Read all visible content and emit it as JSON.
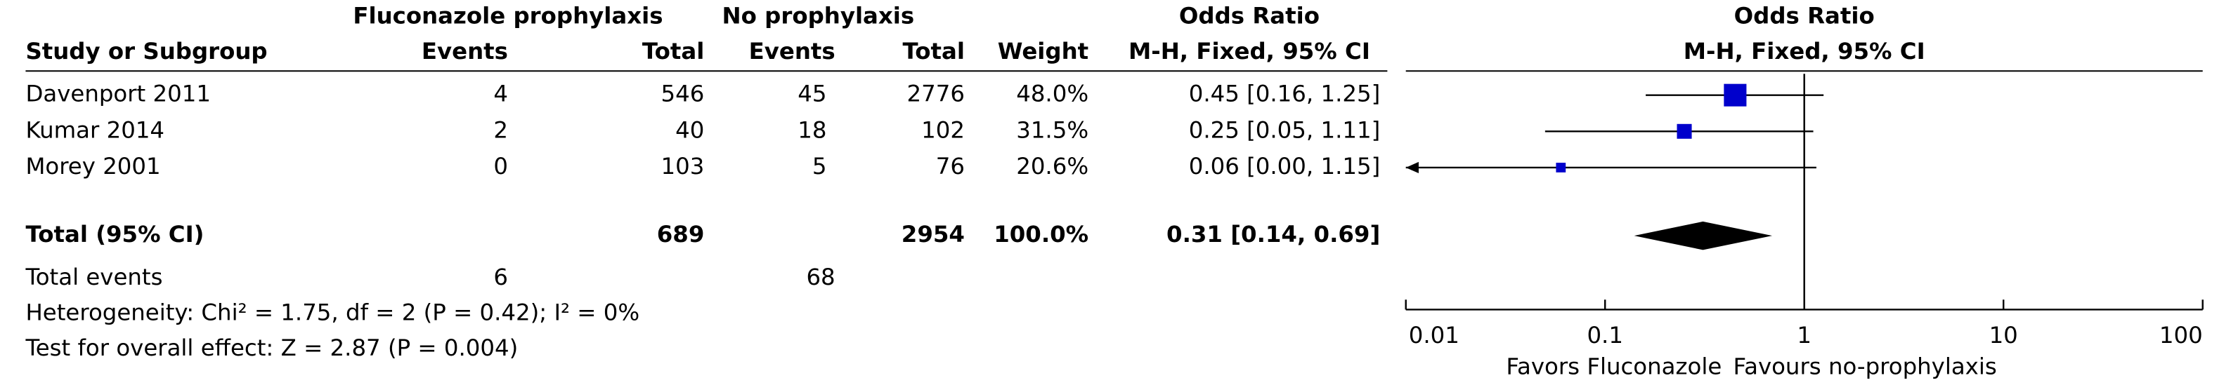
{
  "chart_data": {
    "type": "forest",
    "group_headers": [
      "Fluconazole prophylaxis",
      "No prophylaxis",
      "Odds Ratio",
      "M-H, Fixed, 95% CI"
    ],
    "column_headers": [
      "Study or Subgroup",
      "Events",
      "Total",
      "Events",
      "Total",
      "Weight"
    ],
    "plot_title": "Odds Ratio",
    "plot_subtitle": "M-H, Fixed, 95% CI",
    "studies": [
      {
        "name": "Davenport 2011",
        "events1": 4,
        "total1": 546,
        "events2": 45,
        "total2": 2776,
        "weight": 48.0,
        "weight_label": "48.0%",
        "or": 0.45,
        "ci_low": 0.16,
        "ci_high": 1.25,
        "ci_label": "0.45 [0.16, 1.25]"
      },
      {
        "name": "Kumar 2014",
        "events1": 2,
        "total1": 40,
        "events2": 18,
        "total2": 102,
        "weight": 31.5,
        "weight_label": "31.5%",
        "or": 0.25,
        "ci_low": 0.05,
        "ci_high": 1.11,
        "ci_label": "0.25 [0.05, 1.11]"
      },
      {
        "name": "Morey 2001",
        "events1": 0,
        "total1": 103,
        "events2": 5,
        "total2": 76,
        "weight": 20.6,
        "weight_label": "20.6%",
        "or": 0.06,
        "ci_low": 0.0,
        "ci_high": 1.15,
        "ci_label": "0.06 [0.00, 1.15]"
      }
    ],
    "total": {
      "name": "Total (95% CI)",
      "total1": 689,
      "total2": 2954,
      "weight": 100.0,
      "weight_label": "100.0%",
      "or": 0.31,
      "ci_low": 0.14,
      "ci_high": 0.69,
      "ci_label": "0.31 [0.14, 0.69]"
    },
    "total_events": {
      "name": "Total events",
      "events1": 6,
      "events2": 68
    },
    "heterogeneity": "Heterogeneity: Chi² = 1.75, df = 2 (P = 0.42); I² = 0%",
    "overall_effect": "Test for overall effect: Z = 2.87 (P = 0.004)",
    "xlim": [
      0.01,
      100
    ],
    "xticks": [
      0.01,
      0.1,
      1,
      10,
      100
    ],
    "log_x": true,
    "left_label": "Favors Fluconazole",
    "right_label": "Favours no-prophylaxis",
    "color": "#0000cc",
    "diamond_color": "#000000"
  }
}
